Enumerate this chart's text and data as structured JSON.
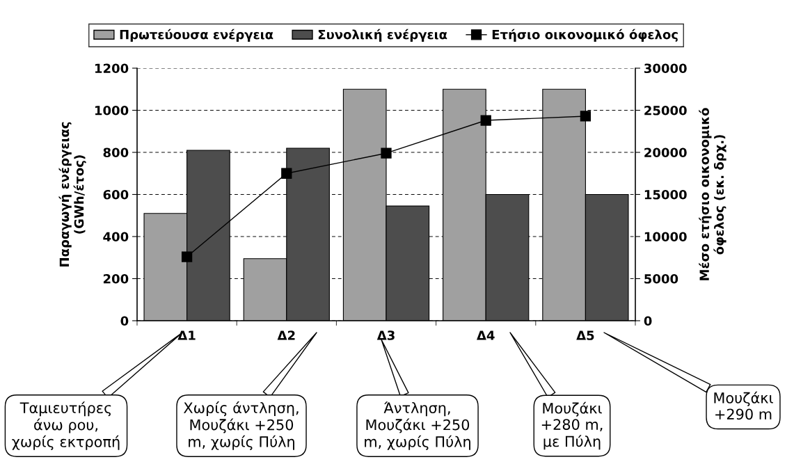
{
  "chart_data": {
    "type": "bar",
    "categories": [
      "Δ1",
      "Δ2",
      "Δ3",
      "Δ4",
      "Δ5"
    ],
    "series": [
      {
        "name": "Πρωτεύουσα ενέργεια",
        "color": "#a0a0a0",
        "values": [
          510,
          295,
          1100,
          1100,
          1100
        ]
      },
      {
        "name": "Συνολική ενέργεια",
        "color": "#4d4d4d",
        "values": [
          810,
          820,
          545,
          600,
          600
        ]
      },
      {
        "name": "Ετήσιο οικονομικό όφελος",
        "type": "line",
        "axis": "y2",
        "color": "#000000",
        "marker": "square",
        "values": [
          7600,
          17500,
          19900,
          23800,
          24300
        ]
      }
    ],
    "ylabel": "Παραγωγή ενέργειας\n(GWh/έτος)",
    "y2label": "Μέσο ετήσιο οικονομικό\nόφελος (εκ. δρχ.)",
    "ylim": [
      0,
      1200
    ],
    "yticks": [
      0,
      200,
      400,
      600,
      800,
      1000,
      1200
    ],
    "y2lim": [
      0,
      30000
    ],
    "y2ticks": [
      0,
      5000,
      10000,
      15000,
      20000,
      25000,
      30000
    ],
    "grid": "y",
    "legend": "top",
    "line_style": "solid",
    "annotations": [
      "Ταμιευτήρες\nάνω ρου,\nχωρίς εκτροπή",
      "Χωρίς άντληση,\nΜουζάκι +250\nm, χωρίς Πύλη",
      "Άντληση,\nΜουζάκι +250\nm, χωρίς Πύλη",
      "Μουζάκι\n+280 m,\nμε Πύλη",
      "Μουζάκι\n+290 m"
    ]
  }
}
